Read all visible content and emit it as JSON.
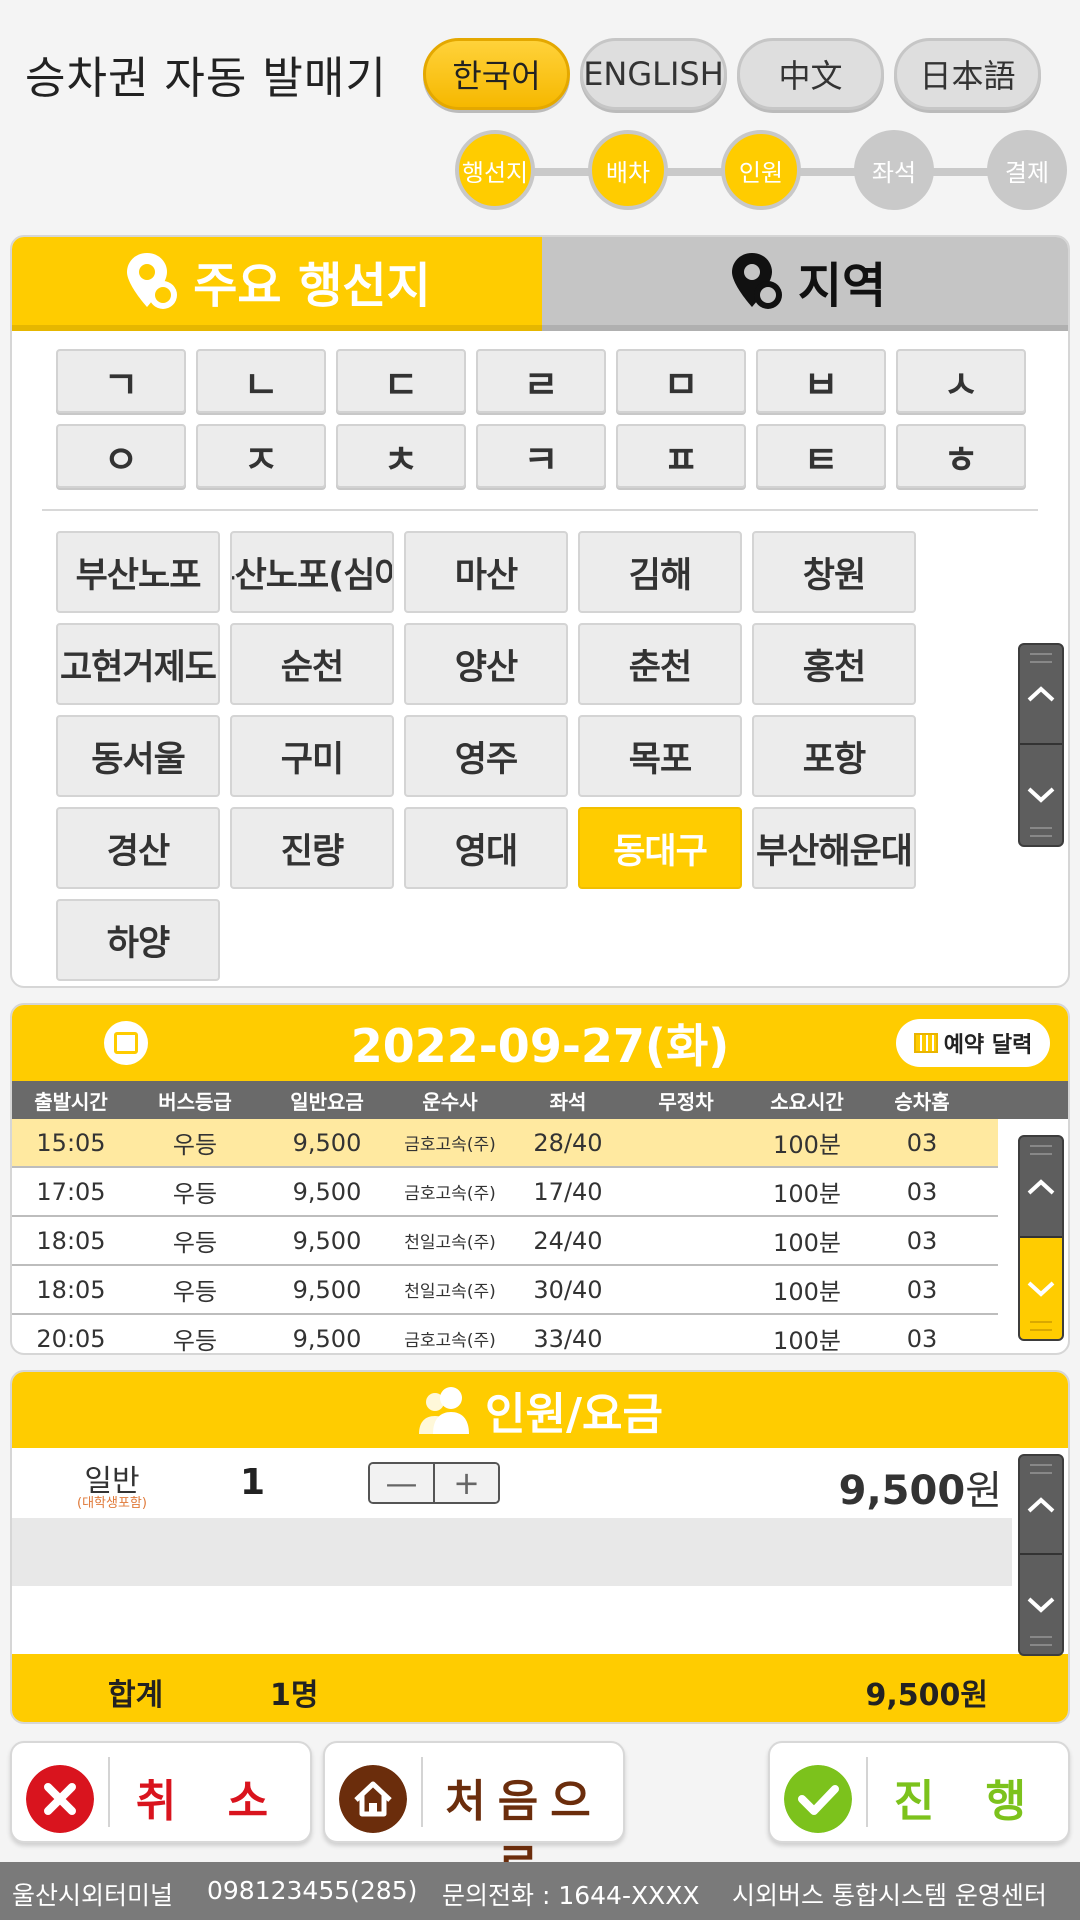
{
  "header": {
    "title": "승차권 자동 발매기",
    "languages": [
      {
        "label": "한국어",
        "active": true
      },
      {
        "label": "ENGLISH",
        "active": false
      },
      {
        "label": "中文",
        "active": false
      },
      {
        "label": "日本語",
        "active": false
      }
    ],
    "steps": [
      {
        "label": "행선지",
        "done": true
      },
      {
        "label": "배차",
        "done": true
      },
      {
        "label": "인원",
        "done": true
      },
      {
        "label": "좌석",
        "done": false
      },
      {
        "label": "결제",
        "done": false
      }
    ]
  },
  "destination": {
    "tabs": [
      {
        "label": "주요 행선지",
        "icon": "location-pin-icon",
        "active": true
      },
      {
        "label": "지역",
        "icon": "location-pin-icon",
        "active": false
      }
    ],
    "consonants": [
      "ㄱ",
      "ㄴ",
      "ㄷ",
      "ㄹ",
      "ㅁ",
      "ㅂ",
      "ㅅ",
      "ㅇ",
      "ㅈ",
      "ㅊ",
      "ㅋ",
      "ㅍ",
      "ㅌ",
      "ㅎ"
    ],
    "cities": [
      "부산노포",
      "부산노포(심야)",
      "마산",
      "김해",
      "창원",
      "고현거제도",
      "순천",
      "양산",
      "춘천",
      "홍천",
      "동서울",
      "구미",
      "영주",
      "목포",
      "포항",
      "경산",
      "진량",
      "영대",
      "동대구",
      "부산해운대",
      "하양"
    ],
    "selected_city": "동대구",
    "scroll_up_icon": "chevron-up-icon",
    "scroll_down_icon": "chevron-down-icon"
  },
  "schedule": {
    "date": "2022-09-27(화)",
    "reserve_label": "예약 달력",
    "columns": [
      "출발시간",
      "버스등급",
      "일반요금",
      "운수사",
      "좌석",
      "무정차",
      "소요시간",
      "승차홈"
    ],
    "rows": [
      [
        "15:05",
        "우등",
        "9,500",
        "금호고속(주)",
        "28/40",
        "",
        "100분",
        "03"
      ],
      [
        "17:05",
        "우등",
        "9,500",
        "금호고속(주)",
        "17/40",
        "",
        "100분",
        "03"
      ],
      [
        "18:05",
        "우등",
        "9,500",
        "천일고속(주)",
        "24/40",
        "",
        "100분",
        "03"
      ],
      [
        "18:05",
        "우등",
        "9,500",
        "천일고속(주)",
        "30/40",
        "",
        "100분",
        "03"
      ],
      [
        "20:05",
        "우등",
        "9,500",
        "금호고속(주)",
        "33/40",
        "",
        "100분",
        "03"
      ]
    ],
    "selected_row": 0
  },
  "fare": {
    "title": "인원/요금",
    "type": "일반",
    "type_note": "(대학생포함)",
    "count": "1",
    "minus": "—",
    "plus": "+",
    "amount": "9,500",
    "currency": "원",
    "total_label": "합계",
    "total_count": "1명",
    "total_amount": "9,500원"
  },
  "actions": {
    "cancel": "취 소",
    "home": "처음으로",
    "proceed": "진 행"
  },
  "footer": {
    "terminal": "울산시외터미널",
    "code": "098123455(285)",
    "phone": "문의전화 : 1644-XXXX",
    "center": "시외버스 통합시스템 운영센터"
  },
  "colors": {
    "accent": "#ffcc00",
    "cancel": "#d9141e",
    "home": "#6b2d0c",
    "proceed": "#7cc21c"
  }
}
